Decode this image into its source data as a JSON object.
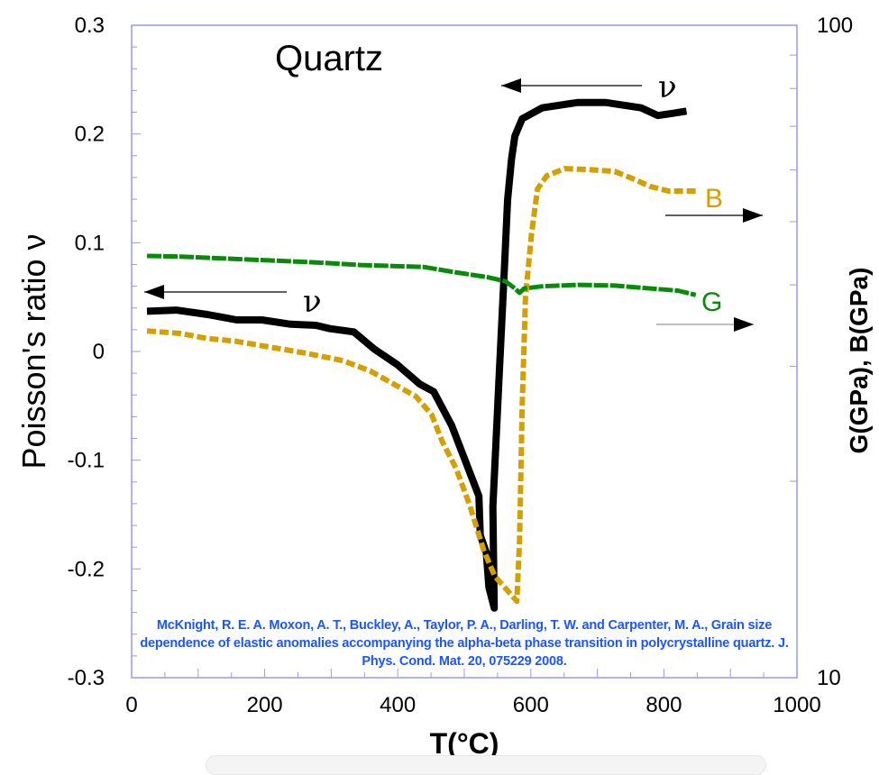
{
  "chart_data": {
    "type": "line",
    "title": "Quartz",
    "xlabel": "T(°C)",
    "ylabel": "Poisson's ratio ν",
    "y2label": "G(GPa), B(GPa)",
    "xlim": [
      0,
      1000
    ],
    "ylim": [
      -0.3,
      0.3
    ],
    "y2lim": [
      10,
      100
    ],
    "y2scale": "log",
    "x_ticks": [
      "0",
      "200",
      "400",
      "600",
      "800",
      "1000"
    ],
    "y_ticks": [
      "0.3",
      "0.2",
      "0.1",
      "0",
      "-0.1",
      "-0.2",
      "-0.3"
    ],
    "y2_ticks": [
      "100",
      "10"
    ],
    "grid": false,
    "colors": {
      "nu": "#000000",
      "B": "#d4a000",
      "G": "#0a8a0a",
      "frame": "#9999ee",
      "citation": "#1a55ff"
    },
    "series": [
      {
        "name": "ν",
        "axis": "left",
        "style": "solid",
        "x": [
          23,
          67,
          114,
          158,
          196,
          239,
          277,
          298,
          334,
          365,
          399,
          433,
          454,
          481,
          522,
          524,
          533,
          537,
          545,
          543,
          552,
          560,
          565,
          571,
          576,
          587,
          617,
          671,
          712,
          766,
          791,
          814,
          834
        ],
        "y": [
          0.037,
          0.038,
          0.034,
          0.029,
          0.029,
          0.025,
          0.024,
          0.021,
          0.018,
          0.002,
          -0.012,
          -0.03,
          -0.037,
          -0.068,
          -0.133,
          -0.169,
          -0.185,
          -0.217,
          -0.236,
          -0.143,
          -0.027,
          0.073,
          0.139,
          0.177,
          0.198,
          0.214,
          0.224,
          0.229,
          0.229,
          0.224,
          0.217,
          0.219,
          0.221
        ]
      },
      {
        "name": "B",
        "axis": "right",
        "style": "dashed",
        "x": [
          23,
          73,
          114,
          155,
          209,
          264,
          318,
          359,
          399,
          427,
          451,
          467,
          488,
          508,
          529,
          546,
          579,
          583,
          587,
          592,
          601,
          610,
          624,
          651,
          685,
          726,
          753,
          780,
          807,
          848
        ],
        "y": [
          34.0,
          33.7,
          33.1,
          32.8,
          32.1,
          31.4,
          30.6,
          29.5,
          28.0,
          27.0,
          25.3,
          23.0,
          20.9,
          18.4,
          15.7,
          14.3,
          13.1,
          16.2,
          26.1,
          38.3,
          47.8,
          56.1,
          58.8,
          60.3,
          60.1,
          59.7,
          58.2,
          56.6,
          55.7,
          55.7
        ]
      },
      {
        "name": "G",
        "axis": "right",
        "style": "dashed",
        "x": [
          23,
          73,
          141,
          209,
          277,
          345,
          440,
          481,
          535,
          562,
          576,
          583,
          590,
          617,
          671,
          726,
          780,
          821,
          848
        ],
        "y": [
          44.3,
          44.2,
          43.9,
          43.6,
          43.3,
          42.9,
          42.6,
          41.9,
          41.1,
          40.5,
          39.5,
          38.9,
          39.5,
          39.8,
          40.0,
          39.9,
          39.5,
          39.2,
          38.6
        ]
      }
    ],
    "annotations": [
      {
        "text": "ν",
        "arrow": "left"
      },
      {
        "text": "ν",
        "arrow": "left"
      },
      {
        "text": "B",
        "arrow": "right"
      },
      {
        "text": "G",
        "arrow": "right"
      }
    ],
    "citation": "McKnight, R. E. A. Moxon, A. T., Buckley, A., Taylor, P. A., Darling, T. W. and Carpenter, M. A., Grain size dependence of elastic anomalies accompanying the alpha-beta phase transition in polycrystalline quartz. J. Phys. Cond. Mat. 20, 075229 2008."
  }
}
